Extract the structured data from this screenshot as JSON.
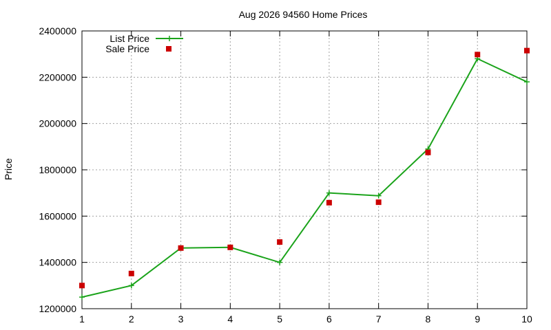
{
  "chart_data": {
    "type": "line",
    "title": "Aug 2026 94560 Home Prices",
    "xlabel": "",
    "ylabel": "Price",
    "x": [
      1,
      2,
      3,
      4,
      5,
      6,
      7,
      8,
      9,
      10
    ],
    "xlim": [
      1,
      10
    ],
    "ylim": [
      1200000,
      2400000
    ],
    "xticks": [
      "1",
      "2",
      "3",
      "4",
      "5",
      "6",
      "7",
      "8",
      "9",
      "10"
    ],
    "yticks": [
      "1200000",
      "1400000",
      "1600000",
      "1800000",
      "2000000",
      "2200000",
      "2400000"
    ],
    "grid": true,
    "legend_position": "top-left",
    "series": [
      {
        "name": "List Price",
        "style": "line-plus",
        "color": "#1aa31a",
        "values": [
          1250000,
          1300000,
          1462000,
          1465000,
          1400000,
          1700000,
          1688000,
          1890000,
          2280000,
          2180000
        ]
      },
      {
        "name": "Sale Price",
        "style": "square-points",
        "color": "#cc0000",
        "values": [
          1300000,
          1352000,
          1462000,
          1465000,
          1488000,
          1658000,
          1660000,
          1875000,
          2298000,
          2315000
        ]
      }
    ]
  }
}
